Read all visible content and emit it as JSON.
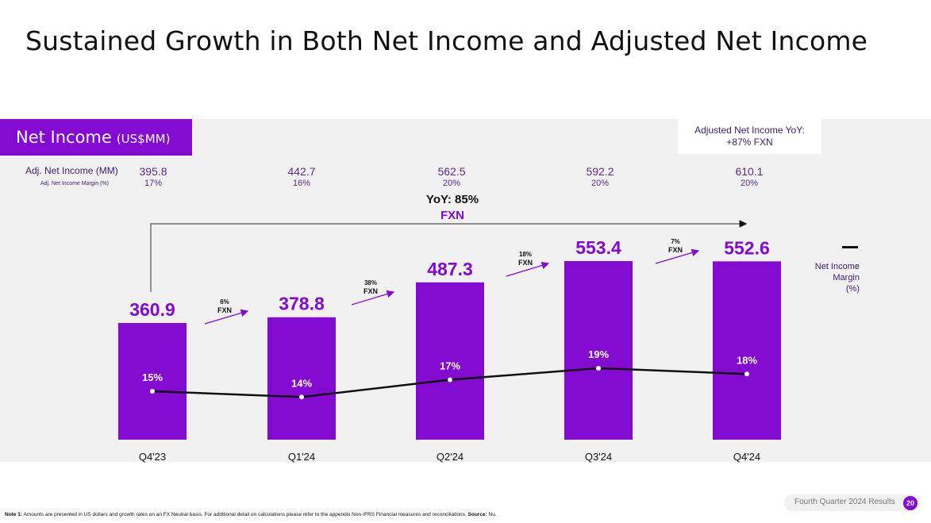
{
  "title": "Sustained Growth in Both Net Income and Adjusted Net Income",
  "section": {
    "label": "Net Income",
    "unit": "(US$MM)"
  },
  "adjusted_yoy_box": {
    "line1": "Adjusted Net Income YoY:",
    "line2": "+87% FXN"
  },
  "adj_rows": {
    "income_label": "Adj. Net Income (MM)",
    "margin_label": "Adj. Net Income Margin (%)",
    "values": [
      "395.8",
      "442.7",
      "562.5",
      "592.2",
      "610.1"
    ],
    "margins": [
      "17%",
      "16%",
      "20%",
      "20%",
      "20%"
    ]
  },
  "yoy_overall": {
    "line1": "YoY: 85%",
    "line2": "FXN"
  },
  "legend": {
    "label_lines": [
      "Net Income",
      "Margin",
      "(%)"
    ]
  },
  "colors": {
    "bar": "#820ad1",
    "accent_text": "#820ad1",
    "line": "#111111",
    "panel": "#f1f1f1"
  },
  "chart_data": {
    "type": "bar",
    "title": "Net Income (US$MM)",
    "categories": [
      "Q4'23",
      "Q1'24",
      "Q2'24",
      "Q3'24",
      "Q4'24"
    ],
    "series": [
      {
        "name": "Net Income",
        "type": "bar",
        "values": [
          360.9,
          378.8,
          487.3,
          553.4,
          552.6
        ]
      },
      {
        "name": "Net Income Margin (%)",
        "type": "line",
        "values": [
          15,
          14,
          17,
          19,
          18
        ]
      }
    ],
    "bar_labels": [
      "360.9",
      "378.8",
      "487.3",
      "553.4",
      "552.6"
    ],
    "margin_labels": [
      "15%",
      "14%",
      "17%",
      "19%",
      "18%"
    ],
    "growth_annotations": [
      {
        "pct": "6%",
        "label": "FXN"
      },
      {
        "pct": "38%",
        "label": "FXN"
      },
      {
        "pct": "18%",
        "label": "FXN"
      },
      {
        "pct": "7%",
        "label": "FXN"
      }
    ],
    "xlabel": "",
    "ylabel": "",
    "legend": "right",
    "grid": false
  },
  "footer": {
    "note_bold": "Note 1:",
    "note_text": " Amounts are presented in US dollars and growth rates on an FX Neutral basis. For additional detail on calculations please refer to the appendix Non-IFRS Financial measures and reconciliations. ",
    "source_bold": "Source:",
    "source_text": " Nu.",
    "deck_label": "Fourth Quarter 2024 Results",
    "page_number": "20"
  }
}
